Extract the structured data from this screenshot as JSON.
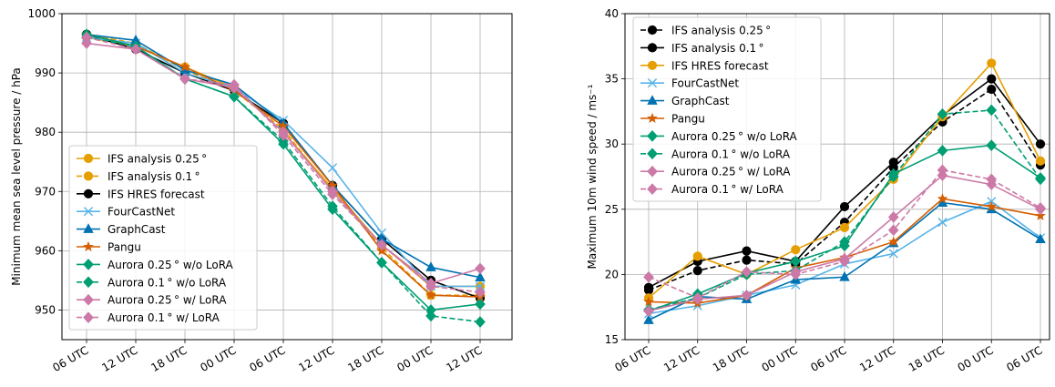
{
  "chart_data": [
    {
      "type": "line",
      "title": "",
      "xlabel": "",
      "ylabel": "Minimum mean sea level pressure / hPa",
      "ylim": [
        945,
        1000
      ],
      "yticks": [
        950,
        960,
        970,
        980,
        990,
        1000
      ],
      "grid": true,
      "legend_position": "lower-left",
      "categories": [
        "06 UTC",
        "12 UTC",
        "18 UTC",
        "00 UTC",
        "06 UTC",
        "12 UTC",
        "18 UTC",
        "00 UTC",
        "12 UTC"
      ],
      "series": [
        {
          "name": "IFS analysis 0.25 °",
          "color": "#E69F00",
          "dashed": false,
          "marker": "circle",
          "values": [
            996.0,
            994.5,
            991.0,
            987.5,
            980.0,
            970.5,
            961.0,
            954.0,
            954.0
          ]
        },
        {
          "name": "IFS analysis 0.1 °",
          "color": "#E69F00",
          "dashed": true,
          "marker": "circle",
          "values": [
            996.5,
            995.0,
            990.5,
            987.0,
            980.5,
            970.0,
            960.5,
            952.5,
            952.5
          ]
        },
        {
          "name": "IFS HRES forecast",
          "color": "#000000",
          "dashed": false,
          "marker": "circle",
          "values": [
            996.5,
            994.0,
            990.0,
            987.0,
            981.5,
            971.0,
            962.0,
            955.0,
            952.0
          ]
        },
        {
          "name": "FourCastNet",
          "color": "#56B4E9",
          "dashed": false,
          "marker": "x",
          "values": [
            996.0,
            995.0,
            990.0,
            987.5,
            982.0,
            974.0,
            963.0,
            954.0,
            954.0
          ]
        },
        {
          "name": "GraphCast",
          "color": "#0072B2",
          "dashed": false,
          "marker": "triangle",
          "values": [
            996.5,
            995.5,
            990.5,
            988.0,
            981.5,
            971.0,
            962.0,
            957.2,
            955.5
          ]
        },
        {
          "name": "Pangu",
          "color": "#D55E00",
          "dashed": false,
          "marker": "star",
          "values": [
            996.5,
            994.5,
            991.0,
            987.0,
            981.0,
            971.0,
            960.0,
            952.5,
            952.2
          ]
        },
        {
          "name": "Aurora 0.25 °  w/o LoRA",
          "color": "#009E73",
          "dashed": false,
          "marker": "diamond",
          "values": [
            996.5,
            994.5,
            989.0,
            986.0,
            978.0,
            967.0,
            958.0,
            950.0,
            951.0
          ]
        },
        {
          "name": "Aurora 0.1 °  w/o LoRA",
          "color": "#009E73",
          "dashed": true,
          "marker": "diamond",
          "values": [
            996.0,
            994.5,
            989.0,
            986.0,
            978.5,
            967.5,
            958.0,
            949.0,
            948.0
          ]
        },
        {
          "name": "Aurora 0.25 °  w/ LoRA",
          "color": "#CC79A7",
          "dashed": false,
          "marker": "diamond",
          "values": [
            995.0,
            994.0,
            989.0,
            987.5,
            980.0,
            970.0,
            961.0,
            954.5,
            957.0
          ]
        },
        {
          "name": "Aurora 0.1 °  w/ LoRA",
          "color": "#CC79A7",
          "dashed": true,
          "marker": "diamond",
          "values": [
            996.0,
            994.0,
            989.0,
            988.0,
            979.5,
            969.5,
            961.0,
            954.0,
            953.0
          ]
        }
      ]
    },
    {
      "type": "line",
      "title": "",
      "xlabel": "",
      "ylabel": "Maximum 10m wind speed / ms⁻¹",
      "ylim": [
        15,
        40
      ],
      "yticks": [
        15,
        20,
        25,
        30,
        35,
        40
      ],
      "grid": true,
      "legend_position": "upper-left",
      "categories": [
        "06 UTC",
        "12 UTC",
        "18 UTC",
        "00 UTC",
        "06 UTC",
        "12 UTC",
        "18 UTC",
        "00 UTC",
        "06 UTC"
      ],
      "series": [
        {
          "name": "IFS analysis 0.25 °",
          "color": "#000000",
          "dashed": true,
          "marker": "circle",
          "values": [
            18.8,
            20.3,
            21.1,
            20.8,
            24.0,
            28.2,
            31.7,
            34.2,
            28.4
          ]
        },
        {
          "name": "IFS analysis 0.1 °",
          "color": "#000000",
          "dashed": false,
          "marker": "circle",
          "values": [
            19.0,
            21.0,
            21.8,
            21.0,
            25.2,
            28.6,
            32.2,
            35.0,
            30.0
          ]
        },
        {
          "name": "IFS HRES forecast",
          "color": "#E69F00",
          "dashed": false,
          "marker": "circle",
          "values": [
            18.2,
            21.4,
            20.0,
            21.9,
            23.6,
            27.3,
            32.1,
            36.2,
            28.7
          ]
        },
        {
          "name": "FourCastNet",
          "color": "#56B4E9",
          "dashed": false,
          "marker": "x",
          "values": [
            17.0,
            17.6,
            18.4,
            19.2,
            20.8,
            21.6,
            24.0,
            25.6,
            22.8
          ]
        },
        {
          "name": "GraphCast",
          "color": "#0072B2",
          "dashed": false,
          "marker": "triangle",
          "values": [
            16.5,
            18.3,
            18.1,
            19.6,
            19.8,
            22.4,
            25.5,
            25.0,
            22.7
          ]
        },
        {
          "name": "Pangu",
          "color": "#D55E00",
          "dashed": false,
          "marker": "star",
          "values": [
            17.9,
            17.8,
            18.4,
            20.5,
            21.3,
            22.5,
            25.8,
            25.2,
            24.5
          ]
        },
        {
          "name": "Aurora 0.25 °  w/o LoRA",
          "color": "#009E73",
          "dashed": false,
          "marker": "diamond",
          "values": [
            17.2,
            18.5,
            20.1,
            21.0,
            22.2,
            27.7,
            29.5,
            29.9,
            27.4
          ]
        },
        {
          "name": "Aurora 0.1 °  w/o LoRA",
          "color": "#009E73",
          "dashed": true,
          "marker": "diamond",
          "values": [
            17.3,
            18.2,
            20.0,
            20.3,
            22.5,
            27.5,
            32.3,
            32.6,
            27.3
          ]
        },
        {
          "name": "Aurora 0.25 °  w/ LoRA",
          "color": "#CC79A7",
          "dashed": false,
          "marker": "diamond",
          "values": [
            17.2,
            18.1,
            18.4,
            20.2,
            21.2,
            24.4,
            27.6,
            26.9,
            25.0
          ]
        },
        {
          "name": "Aurora 0.1 °  w/ LoRA",
          "color": "#CC79A7",
          "dashed": true,
          "marker": "diamond",
          "values": [
            19.8,
            18.2,
            20.2,
            20.0,
            21.0,
            23.4,
            28.0,
            27.3,
            25.1
          ]
        }
      ]
    }
  ]
}
